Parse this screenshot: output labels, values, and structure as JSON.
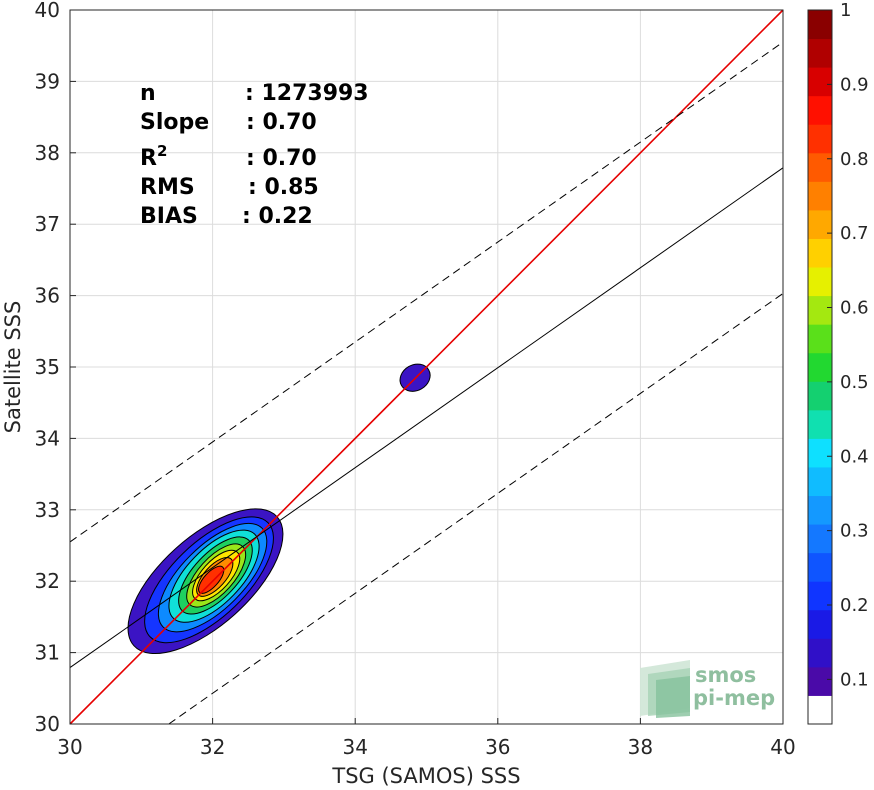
{
  "chart_data": {
    "type": "contour-scatter",
    "title": "",
    "xlabel": "TSG (SAMOS) SSS",
    "ylabel": "Satellite SSS",
    "xlim": [
      30,
      40
    ],
    "ylim": [
      30,
      40
    ],
    "xticks": [
      "30",
      "32",
      "34",
      "36",
      "38",
      "40"
    ],
    "yticks": [
      "30",
      "31",
      "32",
      "33",
      "34",
      "35",
      "36",
      "37",
      "38",
      "39",
      "40"
    ],
    "grid": true,
    "stats": [
      {
        "key": "n",
        "value": ": 1273993"
      },
      {
        "key": "Slope",
        "value": ": 0.70"
      },
      {
        "key": "R",
        "sup": "2",
        "value": ": 0.70"
      },
      {
        "key": "RMS",
        "value": ": 0.85"
      },
      {
        "key": "BIAS",
        "value": ": 0.22"
      }
    ],
    "lines": [
      {
        "name": "identity",
        "color": "#e60000",
        "style": "solid",
        "slope": 1.0,
        "intercept": 0
      },
      {
        "name": "regression",
        "color": "#000000",
        "style": "solid",
        "slope": 0.7,
        "intercept": 9.79
      },
      {
        "name": "upper-bound",
        "color": "#000000",
        "style": "dashed",
        "slope": 0.7,
        "intercept": 11.55
      },
      {
        "name": "lower-bound",
        "color": "#000000",
        "style": "dashed",
        "slope": 0.7,
        "intercept": 8.03
      }
    ],
    "density_contours": [
      {
        "level": 0.05,
        "color": "#3b14c4",
        "cx": 31.9,
        "cy": 32.0,
        "rx": 1.35,
        "ry": 0.62,
        "angle": 42
      },
      {
        "level": 0.15,
        "color": "#1535ff",
        "cx": 31.95,
        "cy": 32.02,
        "rx": 1.15,
        "ry": 0.52,
        "angle": 44
      },
      {
        "level": 0.25,
        "color": "#0d8aff",
        "cx": 32.0,
        "cy": 32.05,
        "rx": 0.98,
        "ry": 0.44,
        "angle": 45
      },
      {
        "level": 0.35,
        "color": "#10e0d8",
        "cx": 32.02,
        "cy": 32.07,
        "rx": 0.82,
        "ry": 0.38,
        "angle": 46
      },
      {
        "level": 0.45,
        "color": "#1fd060",
        "cx": 32.04,
        "cy": 32.08,
        "rx": 0.68,
        "ry": 0.31,
        "angle": 47
      },
      {
        "level": 0.55,
        "color": "#9ae61a",
        "cx": 32.05,
        "cy": 32.08,
        "rx": 0.55,
        "ry": 0.25,
        "angle": 48
      },
      {
        "level": 0.65,
        "color": "#ffe400",
        "cx": 32.05,
        "cy": 32.08,
        "rx": 0.44,
        "ry": 0.2,
        "angle": 48
      },
      {
        "level": 0.75,
        "color": "#ff8c00",
        "cx": 32.03,
        "cy": 32.06,
        "rx": 0.34,
        "ry": 0.15,
        "angle": 48
      },
      {
        "level": 0.85,
        "color": "#ff3000",
        "cx": 31.98,
        "cy": 32.02,
        "rx": 0.24,
        "ry": 0.1,
        "angle": 48
      }
    ],
    "outlier_blob": {
      "level": 0.05,
      "color": "#3b14c4",
      "cx": 34.84,
      "cy": 34.85,
      "rx": 0.22,
      "ry": 0.18,
      "angle": 30
    },
    "colorbar": {
      "ticks": [
        "0.1",
        "0.2",
        "0.3",
        "0.4",
        "0.5",
        "0.6",
        "0.7",
        "0.8",
        "0.9",
        "1"
      ],
      "colors": [
        "#ffffff",
        "#4a0aa8",
        "#3010c8",
        "#1a1ae6",
        "#1035ff",
        "#0f55ff",
        "#1478ff",
        "#1499ff",
        "#10bcff",
        "#0ee0ff",
        "#10e0b0",
        "#14d070",
        "#22d830",
        "#5ae01a",
        "#a4e810",
        "#e6f000",
        "#ffd000",
        "#ffa800",
        "#ff8000",
        "#ff5a00",
        "#ff3000",
        "#ff1000",
        "#d80000",
        "#b00000",
        "#8a0000"
      ]
    }
  },
  "logo": {
    "line1": "smos",
    "line2": "pi-mep"
  }
}
